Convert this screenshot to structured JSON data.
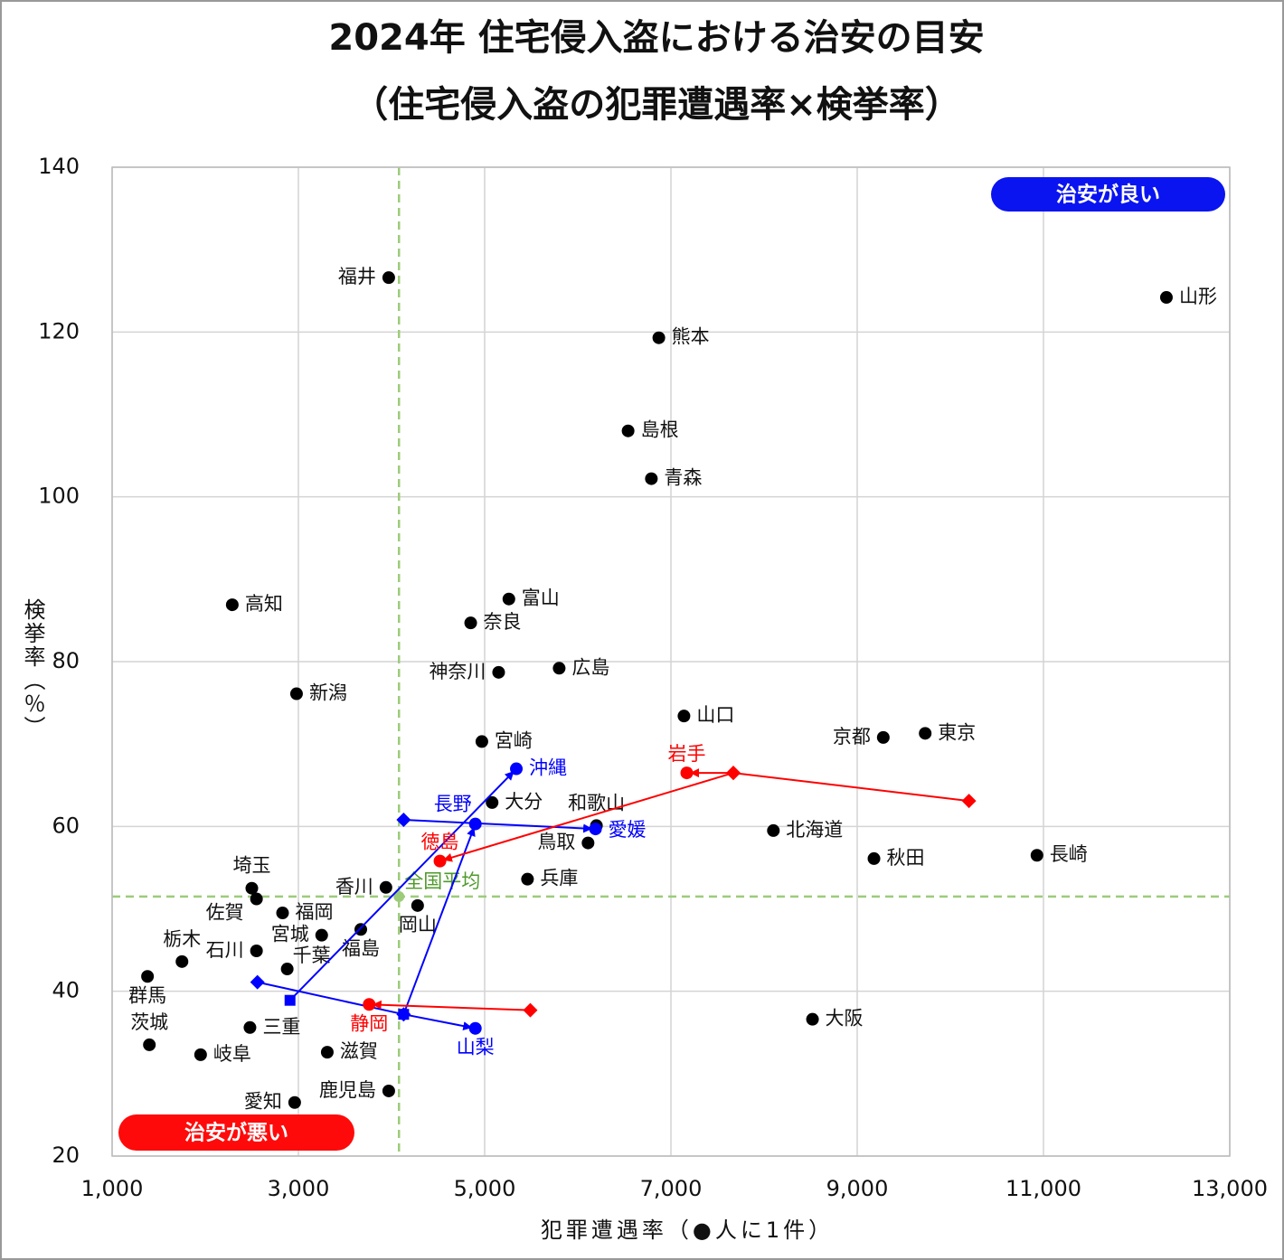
{
  "chart_data": {
    "type": "scatter",
    "title": "2024年 住宅侵入盗における治安の目安",
    "subtitle": "（住宅侵入盗の犯罪遭遇率×検挙率）",
    "x_label": "犯罪遭遇率（●人に1件）",
    "y_label": "検挙率（％）",
    "xlim": [
      1000,
      13000
    ],
    "ylim": [
      20,
      140
    ],
    "xticks": [
      {
        "value": 1000,
        "label": "1,000"
      },
      {
        "value": 3000,
        "label": "3,000"
      },
      {
        "value": 5000,
        "label": "5,000"
      },
      {
        "value": 7000,
        "label": "7,000"
      },
      {
        "value": 9000,
        "label": "9,000"
      },
      {
        "value": 11000,
        "label": "11,000"
      },
      {
        "value": 13000,
        "label": "13,000"
      }
    ],
    "yticks": [
      20,
      40,
      60,
      80,
      100,
      120,
      140
    ],
    "grid": true,
    "points": {
      "color": "#000000",
      "names": [
        "福井",
        "山形",
        "熊本",
        "島根",
        "青森",
        "高知",
        "富山",
        "奈良",
        "神奈川",
        "広島",
        "新潟",
        "山口",
        "京都",
        "東京",
        "宮崎",
        "大分",
        "和歌山",
        "北海道",
        "鳥取",
        "秋田",
        "長崎",
        "兵庫",
        "香川",
        "埼玉",
        "佐賀",
        "福岡",
        "宮城",
        "福島",
        "石川",
        "栃木",
        "千葉",
        "群馬",
        "三重",
        "茨城",
        "滋賀",
        "岐阜",
        "鹿児島",
        "愛知",
        "大阪",
        "岡山"
      ],
      "x": [
        3970,
        12320,
        6870,
        6540,
        6790,
        2290,
        5260,
        4850,
        5150,
        5800,
        2980,
        7140,
        9280,
        9730,
        4970,
        5080,
        6200,
        8100,
        6110,
        9180,
        10930,
        5460,
        3940,
        2500,
        2550,
        2830,
        3250,
        3670,
        2550,
        1750,
        2880,
        1380,
        2480,
        1400,
        3310,
        1950,
        3970,
        2960,
        8520,
        4280
      ],
      "y": [
        126.6,
        124.2,
        119.3,
        108.0,
        102.2,
        86.9,
        87.6,
        84.7,
        78.7,
        79.2,
        76.1,
        73.4,
        70.8,
        71.3,
        70.3,
        62.9,
        60.1,
        59.5,
        58.0,
        56.1,
        56.5,
        53.6,
        52.6,
        52.5,
        51.2,
        49.5,
        46.8,
        47.5,
        44.9,
        43.6,
        42.7,
        41.8,
        35.6,
        33.5,
        32.6,
        32.3,
        27.9,
        26.5,
        36.6,
        50.4
      ]
    },
    "trajectories": [
      {
        "name": "山梨",
        "color": "#0000ff",
        "x": [
          2560,
          4130,
          4900
        ],
        "y": [
          41.1,
          37.2,
          35.5
        ],
        "markers": [
          "diamond",
          "square",
          "circle"
        ]
      },
      {
        "name": "長野",
        "color": "#0000ff",
        "x": [
          4130,
          4900
        ],
        "y": [
          37.2,
          60.3
        ],
        "markers": [
          "diamond",
          "circle"
        ]
      },
      {
        "name": "愛媛",
        "color": "#0000ff",
        "x": [
          4130,
          6190
        ],
        "y": [
          60.8,
          59.7
        ],
        "markers": [
          "diamond",
          "circle"
        ]
      },
      {
        "name": "沖縄",
        "color": "#0000ff",
        "x": [
          2910,
          5340
        ],
        "y": [
          38.9,
          67.0
        ],
        "markers": [
          "square",
          "circle"
        ]
      },
      {
        "name": "岩手",
        "color": "#ff0000",
        "x": [
          10200,
          7670,
          7170
        ],
        "y": [
          63.1,
          66.5,
          66.5
        ],
        "markers": [
          "diamond",
          "diamond",
          "circle"
        ]
      },
      {
        "name": "徳島",
        "color": "#ff0000",
        "x": [
          7670,
          4520
        ],
        "y": [
          66.5,
          55.8
        ],
        "markers": [
          "diamond",
          "circle"
        ]
      },
      {
        "name": "静岡",
        "color": "#ff0000",
        "x": [
          5490,
          3760
        ],
        "y": [
          37.7,
          38.4
        ],
        "markers": [
          "diamond",
          "circle"
        ]
      }
    ],
    "average": {
      "name": "全国平均",
      "x": 4080,
      "y": 51.5,
      "color": "#9ccc7a",
      "text_color": "#4e9a2a"
    },
    "annotations": [
      {
        "text": "治安が良い",
        "color": "#0a14f0"
      },
      {
        "text": "治安が悪い",
        "color": "#ff0a0a"
      }
    ]
  }
}
